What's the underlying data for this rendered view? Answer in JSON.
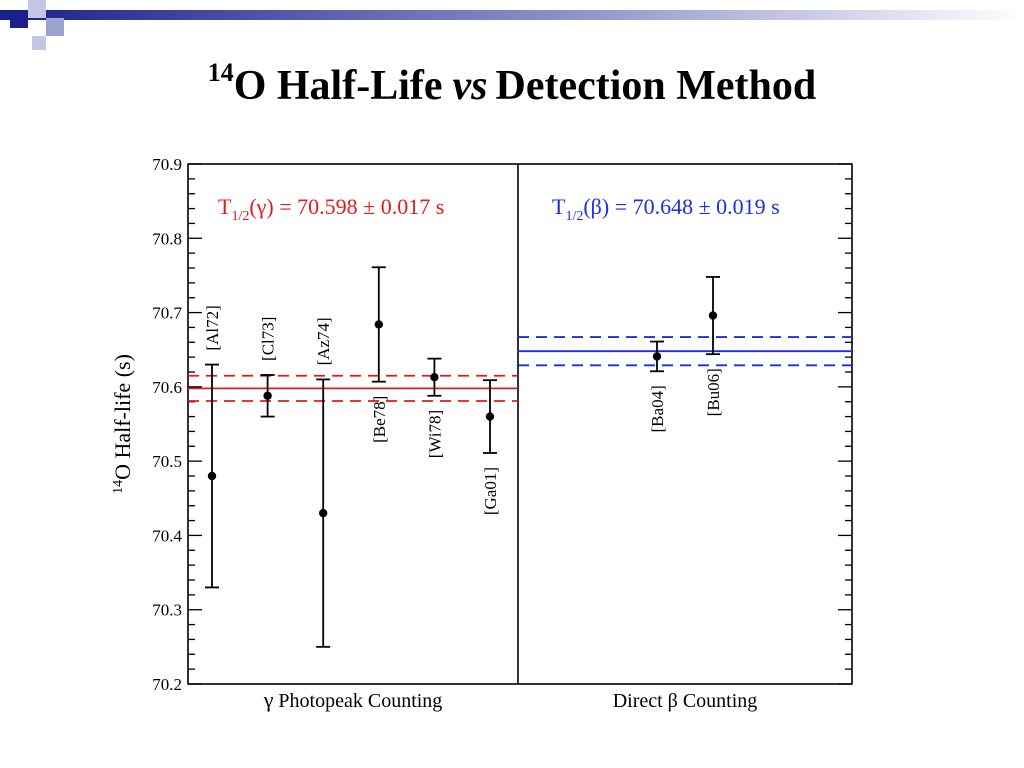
{
  "slide": {
    "title_sup": "14",
    "title_a": "O Half-Life",
    "title_vs": "vs",
    "title_b": "Detection Method"
  },
  "colors": {
    "deco_dark": "#1a1f8a",
    "deco_light": "#9da1cf",
    "gamma": "#e01b1b",
    "beta": "#1a2fe0",
    "axis": "#000000"
  },
  "chart_data": {
    "type": "scatter",
    "ylabel_sup": "14",
    "ylabel": "O Half-life (s)",
    "ylim": [
      70.2,
      70.9
    ],
    "yticks": [
      "70.2",
      "70.3",
      "70.4",
      "70.5",
      "70.6",
      "70.7",
      "70.8",
      "70.9"
    ],
    "grid": false,
    "panels": [
      {
        "key": "gamma",
        "xlabel_symbol": "γ",
        "xlabel": " Photopeak Counting",
        "fit": {
          "label_main": "T",
          "label_sub": "1/2",
          "label_rest": "(γ) = 70.598 ± 0.017 s",
          "value": 70.598,
          "err": 0.017
        },
        "points": [
          {
            "label": "[Al72]",
            "y": 70.48,
            "err": 0.15,
            "label_pos": "above"
          },
          {
            "label": "[Cl73]",
            "y": 70.588,
            "err": 0.028,
            "label_pos": "above"
          },
          {
            "label": "[Az74]",
            "y": 70.43,
            "err": 0.18,
            "label_pos": "above"
          },
          {
            "label": "[Be78]",
            "y": 70.684,
            "err": 0.077,
            "label_pos": "below"
          },
          {
            "label": "[Wi78]",
            "y": 70.613,
            "err": 0.025,
            "label_pos": "below"
          },
          {
            "label": "[Ga01]",
            "y": 70.56,
            "err": 0.049,
            "label_pos": "below"
          }
        ]
      },
      {
        "key": "beta",
        "xlabel_symbol": "",
        "xlabel": "Direct β Counting",
        "fit": {
          "label_main": "T",
          "label_sub": "1/2",
          "label_rest": "(β) = 70.648 ± 0.019 s",
          "value": 70.648,
          "err": 0.019
        },
        "points": [
          {
            "label": "[Ba04]",
            "y": 70.641,
            "err": 0.02,
            "label_pos": "below"
          },
          {
            "label": "[Bu06]",
            "y": 70.696,
            "err": 0.052,
            "label_pos": "below"
          }
        ]
      }
    ]
  }
}
